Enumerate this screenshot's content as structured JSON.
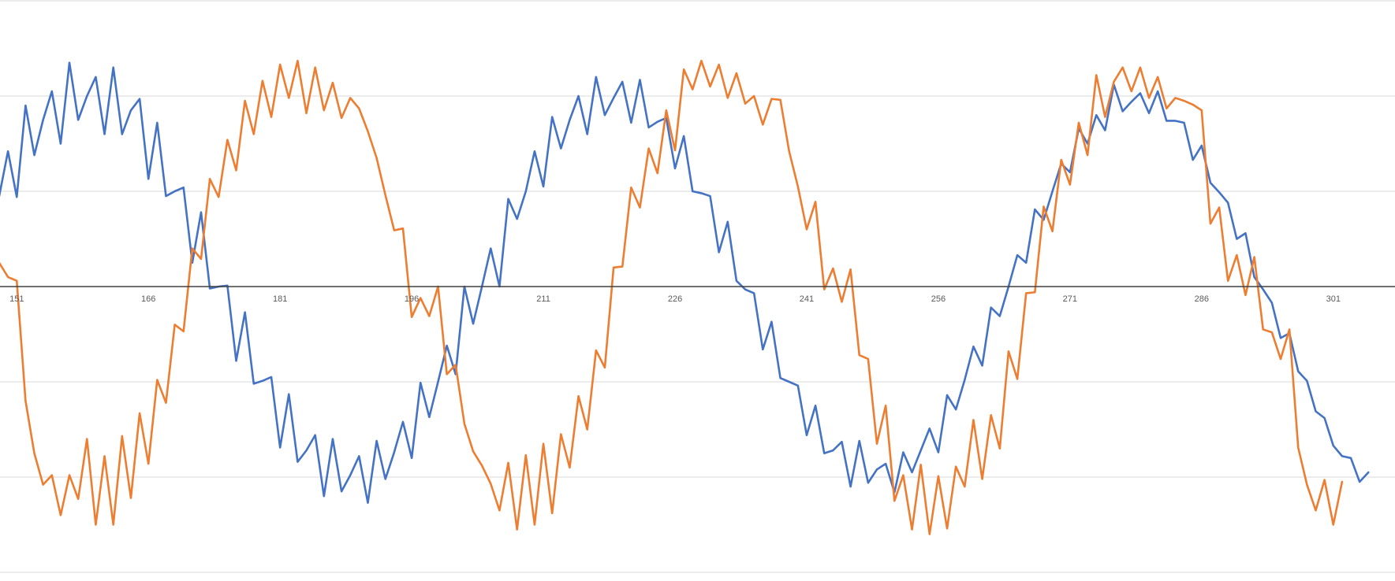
{
  "chart_data": {
    "type": "line",
    "x_start": 149,
    "x_tick_labels": [
      "151",
      "166",
      "181",
      "196",
      "211",
      "226",
      "241",
      "256",
      "271",
      "286",
      "301"
    ],
    "ylim": [
      -3,
      3
    ],
    "y_gridlines": [
      -3,
      -2,
      -1,
      1,
      2,
      3
    ],
    "grid": true,
    "legend": "none",
    "series": [
      {
        "color": "#4472c4",
        "values": [
          0.95,
          1.42,
          0.94,
          1.9,
          1.38,
          1.75,
          2.05,
          1.5,
          2.35,
          1.75,
          2.0,
          2.2,
          1.6,
          2.3,
          1.6,
          1.85,
          1.97,
          1.13,
          1.72,
          0.95,
          1.0,
          1.04,
          0.25,
          0.78,
          -0.02,
          0.0,
          0.01,
          -0.78,
          -0.27,
          -1.02,
          -0.99,
          -0.95,
          -1.69,
          -1.13,
          -1.84,
          -1.72,
          -1.56,
          -2.2,
          -1.6,
          -2.15,
          -1.98,
          -1.78,
          -2.27,
          -1.62,
          -2.02,
          -1.74,
          -1.42,
          -1.8,
          -1.01,
          -1.37,
          -1.0,
          -0.62,
          -0.92,
          0.0,
          -0.39,
          0.0,
          0.4,
          0.0,
          0.92,
          0.71,
          1.0,
          1.42,
          1.05,
          1.78,
          1.45,
          1.75,
          2.0,
          1.6,
          2.2,
          1.8,
          1.98,
          2.15,
          1.72,
          2.17,
          1.67,
          1.73,
          1.77,
          1.24,
          1.58,
          1.0,
          0.98,
          0.95,
          0.36,
          0.68,
          0.06,
          -0.03,
          -0.07,
          -0.66,
          -0.37,
          -0.96,
          -1.0,
          -1.04,
          -1.56,
          -1.25,
          -1.75,
          -1.72,
          -1.63,
          -2.1,
          -1.62,
          -2.06,
          -1.92,
          -1.86,
          -2.16,
          -1.74,
          -1.95,
          -1.72,
          -1.49,
          -1.74,
          -1.14,
          -1.29,
          -0.98,
          -0.63,
          -0.83,
          -0.22,
          -0.31,
          0.0,
          0.33,
          0.25,
          0.81,
          0.7,
          1.0,
          1.29,
          1.2,
          1.66,
          1.5,
          1.8,
          1.64,
          2.12,
          1.84,
          1.94,
          2.03,
          1.82,
          2.05,
          1.74,
          1.74,
          1.72,
          1.33,
          1.48,
          1.09,
          0.99,
          0.88,
          0.5,
          0.56,
          0.1,
          -0.03,
          -0.17,
          -0.54,
          -0.49,
          -0.89,
          -0.99,
          -1.31,
          -1.38,
          -1.67,
          -1.78,
          -1.8,
          -2.05,
          -1.95
        ]
      },
      {
        "color": "#ed7d31",
        "values": [
          0.25,
          0.1,
          0.06,
          -1.2,
          -1.75,
          -2.08,
          -1.98,
          -2.4,
          -1.98,
          -2.23,
          -1.6,
          -2.5,
          -1.78,
          -2.5,
          -1.57,
          -2.22,
          -1.33,
          -1.86,
          -0.98,
          -1.22,
          -0.4,
          -0.47,
          0.4,
          0.29,
          1.13,
          0.94,
          1.54,
          1.22,
          1.95,
          1.6,
          2.16,
          1.78,
          2.33,
          1.98,
          2.37,
          1.82,
          2.3,
          1.85,
          2.14,
          1.77,
          1.98,
          1.87,
          1.63,
          1.35,
          0.96,
          0.59,
          0.61,
          -0.32,
          -0.12,
          -0.31,
          0.0,
          -0.92,
          -0.82,
          -1.44,
          -1.73,
          -1.88,
          -2.07,
          -2.35,
          -1.85,
          -2.55,
          -1.77,
          -2.5,
          -1.65,
          -2.38,
          -1.55,
          -1.9,
          -1.15,
          -1.5,
          -0.67,
          -0.85,
          0.2,
          0.21,
          1.04,
          0.83,
          1.45,
          1.19,
          1.85,
          1.43,
          2.28,
          2.07,
          2.37,
          2.1,
          2.33,
          1.98,
          2.24,
          1.92,
          2.0,
          1.7,
          1.97,
          1.96,
          1.42,
          1.05,
          0.6,
          0.89,
          -0.03,
          0.19,
          -0.16,
          0.18,
          -0.72,
          -0.76,
          -1.65,
          -1.25,
          -2.25,
          -1.98,
          -2.55,
          -1.87,
          -2.6,
          -1.99,
          -2.54,
          -1.89,
          -2.1,
          -1.4,
          -2.02,
          -1.35,
          -1.7,
          -0.68,
          -0.97,
          -0.07,
          -0.06,
          0.84,
          0.58,
          1.33,
          1.07,
          1.72,
          1.38,
          2.22,
          1.78,
          2.15,
          2.3,
          2.05,
          2.3,
          1.98,
          2.2,
          1.87,
          1.98,
          1.95,
          1.91,
          1.85,
          0.66,
          0.83,
          0.06,
          0.33,
          -0.09,
          0.31,
          -0.45,
          -0.48,
          -0.76,
          -0.45,
          -1.69,
          -2.08,
          -2.35,
          -2.03,
          -2.5,
          -2.05
        ]
      }
    ]
  }
}
